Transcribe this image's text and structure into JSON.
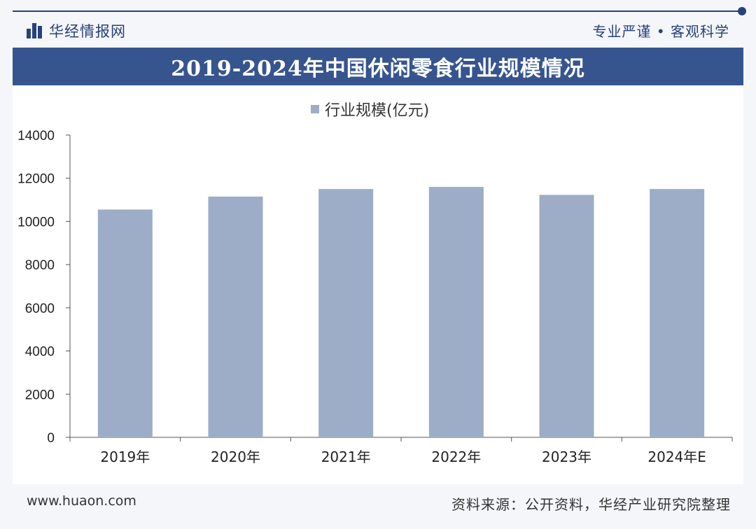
{
  "header": {
    "brand": "华经情报网",
    "slogan": "专业严谨 • 客观科学",
    "title": "2019-2024年中国休闲零食行业规模情况"
  },
  "colors": {
    "bar": "#9dadc7",
    "accent": "#36558f",
    "axis": "#555555"
  },
  "icons": {
    "brand": "logo-bars-icon"
  },
  "chart_data": {
    "type": "bar",
    "title": "2019-2024年中国休闲零食行业规模情况",
    "categories": [
      "2019年",
      "2020年",
      "2021年",
      "2022年",
      "2023年",
      "2024年E"
    ],
    "series": [
      {
        "name": "行业规模(亿元)",
        "values": [
          10550,
          11150,
          11500,
          11600,
          11230,
          11500
        ]
      }
    ],
    "ylim": [
      0,
      14000
    ],
    "yticks": [
      "0",
      "2000",
      "4000",
      "6000",
      "8000",
      "10000",
      "12000",
      "14000"
    ],
    "grid": false,
    "legend": "top-center"
  },
  "footer": {
    "website": "www.huaon.com",
    "source": "资料来源：公开资料，华经产业研究院整理"
  }
}
